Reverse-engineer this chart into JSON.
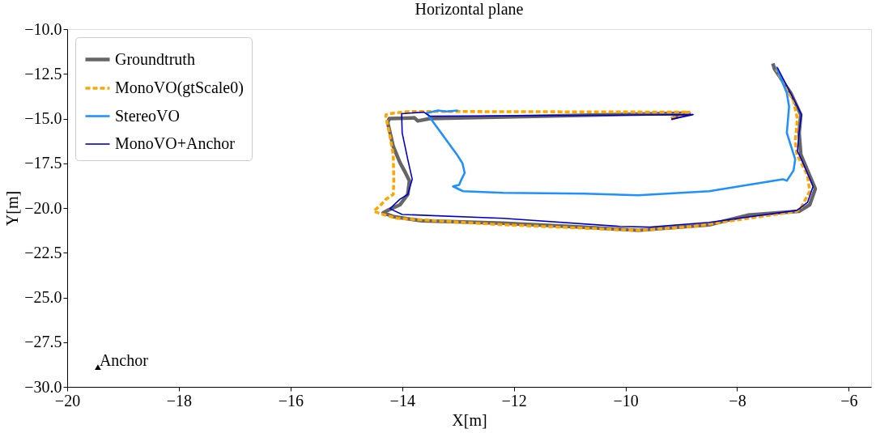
{
  "chart_data": {
    "type": "line",
    "title": "Horizontal plane",
    "xlabel": "X[m]",
    "ylabel": "Y[m]",
    "xlim": [
      -20,
      -5.6
    ],
    "ylim": [
      -30,
      -10
    ],
    "xticks": [
      {
        "value": -20,
        "label": "−20"
      },
      {
        "value": -18,
        "label": "−18"
      },
      {
        "value": -16,
        "label": "−16"
      },
      {
        "value": -14,
        "label": "−14"
      },
      {
        "value": -12,
        "label": "−12"
      },
      {
        "value": -10,
        "label": "−10"
      },
      {
        "value": -8,
        "label": "−8"
      },
      {
        "value": -6,
        "label": "−6"
      }
    ],
    "yticks": [
      {
        "value": -10,
        "label": "−10.0"
      },
      {
        "value": -12.5,
        "label": "−12.5"
      },
      {
        "value": -15,
        "label": "−15.0"
      },
      {
        "value": -17.5,
        "label": "−17.5"
      },
      {
        "value": -20,
        "label": "−20.0"
      },
      {
        "value": -22.5,
        "label": "−22.5"
      },
      {
        "value": -25,
        "label": "−25.0"
      },
      {
        "value": -27.5,
        "label": "−27.5"
      },
      {
        "value": -30,
        "label": "−30.0"
      }
    ],
    "grid": false,
    "legend": "top left",
    "series": [
      {
        "name": "Groundtruth",
        "color": "#666666",
        "line_style": "solid",
        "x": [
          -9.18,
          -8.86,
          -13.5,
          -13.72,
          -13.78,
          -14.23,
          -14.26,
          -14.16,
          -14.04,
          -13.94,
          -13.87,
          -13.9,
          -14.04,
          -14.26,
          -14.34,
          -14.15,
          -13.65,
          -12.19,
          -10.73,
          -9.77,
          -8.5,
          -7.81,
          -6.89,
          -6.7,
          -6.6,
          -6.74,
          -6.86,
          -6.89,
          -6.86,
          -7.04,
          -7.33,
          -7.36
        ],
        "values": [
          -15.0,
          -14.69,
          -15.0,
          -15.13,
          -14.96,
          -15.0,
          -15.22,
          -16.56,
          -17.46,
          -18.04,
          -18.48,
          -19.24,
          -19.82,
          -20.13,
          -20.27,
          -20.49,
          -20.71,
          -20.85,
          -21.07,
          -21.25,
          -20.94,
          -20.4,
          -20.18,
          -19.82,
          -18.93,
          -17.9,
          -17.01,
          -15.8,
          -14.78,
          -13.57,
          -12.23,
          -11.92
        ]
      },
      {
        "name": "MonoVO(gtScale0)",
        "color": "#ffa500",
        "line_style": "dashed",
        "x": [
          -9.18,
          -8.86,
          -13.85,
          -14.15,
          -14.29,
          -14.29,
          -14.23,
          -14.16,
          -14.15,
          -14.16,
          -14.29,
          -14.38,
          -14.51,
          -14.34,
          -14.09,
          -12.19,
          -9.77,
          -8.79,
          -6.93,
          -6.85,
          -6.7,
          -6.74,
          -6.93,
          -6.96,
          -6.92,
          -6.99,
          -7.18,
          -7.3
        ],
        "values": [
          -15.0,
          -14.64,
          -14.6,
          -14.69,
          -14.78,
          -14.91,
          -15.8,
          -17.01,
          -18.48,
          -19.24,
          -19.51,
          -19.82,
          -20.18,
          -20.36,
          -20.58,
          -20.94,
          -21.25,
          -21.03,
          -20.18,
          -19.96,
          -19.06,
          -18.17,
          -17.01,
          -16.25,
          -15.04,
          -14.02,
          -12.99,
          -12.23
        ]
      },
      {
        "name": "StereoVO",
        "color": "#1e90ff",
        "line_style": "solid",
        "x": [
          -13.0,
          -13.21,
          -13.36,
          -13.56,
          -13.49,
          -13.27,
          -13.02,
          -12.92,
          -12.88,
          -12.95,
          -12.98,
          -13.09,
          -12.91,
          -12.19,
          -10.73,
          -9.77,
          -8.5,
          -7.81,
          -7.18,
          -7.11,
          -6.99,
          -6.96,
          -7.11,
          -7.07,
          -7.11,
          -7.3
        ],
        "values": [
          -14.55,
          -14.6,
          -14.55,
          -14.69,
          -15.0,
          -15.94,
          -17.01,
          -17.5,
          -18.04,
          -18.48,
          -18.71,
          -18.79,
          -19.06,
          -19.15,
          -19.2,
          -19.29,
          -19.06,
          -18.71,
          -18.39,
          -18.48,
          -17.9,
          -17.28,
          -15.8,
          -14.33,
          -13.57,
          -12.1
        ]
      },
      {
        "name": "MonoVO+Anchor",
        "color": "#0000cd",
        "line_style": "solid",
        "x": [
          -9.18,
          -8.79,
          -13.5,
          -13.61,
          -14.01,
          -14.0,
          -13.9,
          -13.82,
          -13.9,
          -14.04,
          -14.22,
          -14.0,
          -12.19,
          -10.1,
          -9.56,
          -8.5,
          -6.93,
          -6.74,
          -6.64,
          -6.85,
          -6.92,
          -6.89,
          -6.85,
          -6.92,
          -7.28
        ],
        "values": [
          -15.04,
          -14.78,
          -14.87,
          -14.64,
          -14.73,
          -15.8,
          -17.28,
          -18.39,
          -19.24,
          -19.51,
          -20.04,
          -20.36,
          -20.58,
          -21.03,
          -21.07,
          -20.8,
          -20.13,
          -19.69,
          -18.79,
          -17.28,
          -16.83,
          -15.8,
          -14.78,
          -14.33,
          -12.14
        ]
      },
      {
        "type": "scatter",
        "color": "#000000",
        "marker": "triangle",
        "x": [
          -19.45
        ],
        "values": [
          -28.9
        ]
      }
    ],
    "annotations": [
      {
        "text": "Anchor",
        "x": -19.45,
        "y": -28.9
      }
    ]
  }
}
